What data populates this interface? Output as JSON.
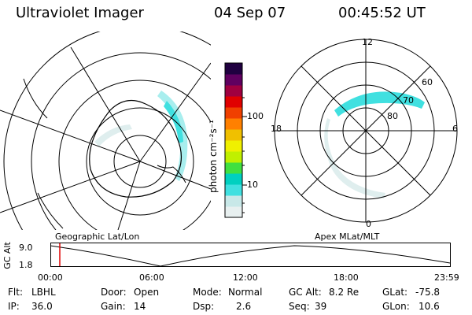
{
  "header": {
    "instrument": "Ultraviolet Imager",
    "date": "04 Sep 07",
    "time": "00:45:52 UT"
  },
  "colorbar": {
    "ticks": [
      "100",
      "10"
    ],
    "unit_label": "photon cm⁻²s⁻¹",
    "colors": [
      "#e8f0f0",
      "#c8e8e8",
      "#40e0e0",
      "#00d0c0",
      "#40e040",
      "#c0f000",
      "#f0f000",
      "#f0c000",
      "#ff8000",
      "#f04000",
      "#e00000",
      "#a00040",
      "#600060",
      "#200040"
    ]
  },
  "left_map": {
    "label": "Geographic Lat/Lon"
  },
  "right_map": {
    "label": "Apex MLat/MLT",
    "mlt_labels": {
      "top": "12",
      "right": "6",
      "bottom": "0",
      "left": "18"
    },
    "lat_labels": [
      "60",
      "70",
      "80"
    ]
  },
  "altitude_plot": {
    "ylabel": "GC Alt",
    "yticks": [
      "9.0",
      "1.8"
    ],
    "xticks": [
      "00:00",
      "06:00",
      "12:00",
      "18:00",
      "23:59"
    ],
    "marker_color": "#e00000"
  },
  "status": {
    "flt_label": "Flt:",
    "flt_value": "LBHL",
    "ip_label": "IP:",
    "ip_value": "36.0",
    "door_label": "Door:",
    "door_value": "Open",
    "gain_label": "Gain:",
    "gain_value": "14",
    "mode_label": "Mode:",
    "mode_value": "Normal",
    "dsp_label": "Dsp:",
    "dsp_value": "2.6",
    "gcalt_label": "GC Alt:",
    "gcalt_value": "8.2 Re",
    "seq_label": "Seq:",
    "seq_value": "39",
    "glat_label": "GLat:",
    "glat_value": "-75.8",
    "glon_label": "GLon:",
    "glon_value": "10.6"
  }
}
